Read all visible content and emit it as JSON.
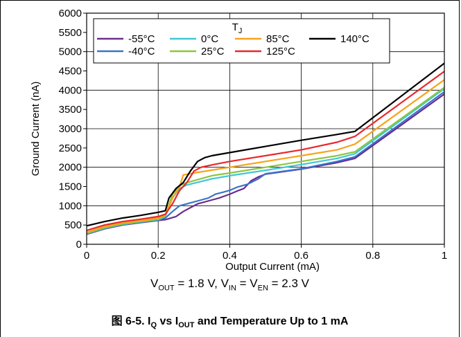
{
  "chart_data": {
    "type": "line",
    "xlabel": "Output Current (mA)",
    "ylabel": "Ground Current (nA)",
    "xlim": [
      0,
      1
    ],
    "ylim": [
      0,
      6000
    ],
    "xticks": [
      "0",
      "0.2",
      "0.4",
      "0.6",
      "0.8",
      "1"
    ],
    "yticks": [
      "0",
      "500",
      "1000",
      "1500",
      "2000",
      "2500",
      "3000",
      "3500",
      "4000",
      "4500",
      "5000",
      "5500",
      "6000"
    ],
    "grid": true,
    "legend_title_main": "T",
    "legend_title_sub": "J",
    "legend_position": "top-right",
    "series": [
      {
        "name": "-55°C",
        "color": "#6a2c8f",
        "x": [
          0,
          0.05,
          0.1,
          0.15,
          0.2,
          0.22,
          0.25,
          0.27,
          0.29,
          0.31,
          0.33,
          0.35,
          0.37,
          0.4,
          0.42,
          0.44,
          0.46,
          0.48,
          0.5,
          0.6,
          0.7,
          0.75,
          1.0
        ],
        "y": [
          260,
          400,
          500,
          560,
          620,
          640,
          720,
          850,
          950,
          1050,
          1100,
          1150,
          1200,
          1300,
          1380,
          1450,
          1650,
          1750,
          1820,
          1950,
          2120,
          2230,
          3900
        ]
      },
      {
        "name": "-40°C",
        "color": "#3a73c9",
        "x": [
          0,
          0.05,
          0.1,
          0.15,
          0.2,
          0.22,
          0.24,
          0.26,
          0.28,
          0.3,
          0.32,
          0.34,
          0.36,
          0.38,
          0.4,
          0.42,
          0.45,
          0.48,
          0.5,
          0.6,
          0.7,
          0.75,
          1.0
        ],
        "y": [
          270,
          410,
          510,
          570,
          630,
          680,
          850,
          1000,
          1050,
          1100,
          1150,
          1200,
          1300,
          1350,
          1400,
          1480,
          1560,
          1700,
          1830,
          1960,
          2150,
          2270,
          3960
        ]
      },
      {
        "name": "0°C",
        "color": "#3fc6d6",
        "x": [
          0,
          0.05,
          0.1,
          0.15,
          0.2,
          0.22,
          0.24,
          0.26,
          0.28,
          0.35,
          0.4,
          0.5,
          0.6,
          0.7,
          0.75,
          1.0
        ],
        "y": [
          280,
          420,
          520,
          580,
          640,
          720,
          1200,
          1450,
          1540,
          1700,
          1780,
          1920,
          2070,
          2230,
          2350,
          4040
        ]
      },
      {
        "name": "25°C",
        "color": "#8cc63f",
        "x": [
          0,
          0.05,
          0.1,
          0.15,
          0.2,
          0.22,
          0.24,
          0.26,
          0.28,
          0.35,
          0.4,
          0.5,
          0.6,
          0.7,
          0.75,
          1.0
        ],
        "y": [
          290,
          430,
          530,
          590,
          650,
          740,
          1300,
          1520,
          1600,
          1780,
          1850,
          2000,
          2150,
          2300,
          2400,
          4070
        ]
      },
      {
        "name": "85°C",
        "color": "#f7a21b",
        "x": [
          0,
          0.05,
          0.1,
          0.15,
          0.2,
          0.22,
          0.24,
          0.26,
          0.27,
          0.3,
          0.4,
          0.5,
          0.6,
          0.7,
          0.75,
          1.0
        ],
        "y": [
          310,
          460,
          560,
          610,
          680,
          760,
          1200,
          1500,
          1800,
          1850,
          2000,
          2150,
          2300,
          2450,
          2600,
          4270
        ]
      },
      {
        "name": "125°C",
        "color": "#e8282b",
        "x": [
          0,
          0.05,
          0.1,
          0.15,
          0.2,
          0.22,
          0.24,
          0.26,
          0.28,
          0.3,
          0.32,
          0.35,
          0.4,
          0.5,
          0.6,
          0.7,
          0.75,
          1.0
        ],
        "y": [
          360,
          500,
          590,
          650,
          720,
          780,
          1050,
          1400,
          1600,
          1900,
          2000,
          2060,
          2150,
          2300,
          2450,
          2650,
          2800,
          4490
        ]
      },
      {
        "name": "140°C",
        "color": "#000000",
        "x": [
          0,
          0.05,
          0.1,
          0.15,
          0.2,
          0.22,
          0.23,
          0.25,
          0.27,
          0.29,
          0.31,
          0.33,
          0.35,
          0.4,
          0.5,
          0.6,
          0.7,
          0.75,
          1.0
        ],
        "y": [
          480,
          590,
          680,
          750,
          830,
          870,
          1200,
          1450,
          1600,
          1900,
          2150,
          2250,
          2300,
          2380,
          2540,
          2700,
          2850,
          2930,
          4700
        ]
      }
    ]
  },
  "conditions": {
    "v_out_main": "V",
    "v_out_sub": "OUT",
    "v_out_val": " = 1.8 V, ",
    "v_in_main": "V",
    "v_in_sub": "IN",
    "v_eq": " = ",
    "v_en_main": "V",
    "v_en_sub": "EN",
    "v_en_val": " = 2.3 V"
  },
  "caption": {
    "prefix": "图 6-5. I",
    "q_sub": "Q",
    "mid": " vs I",
    "out_sub": "OUT",
    "suffix": " and Temperature Up to 1 mA"
  }
}
